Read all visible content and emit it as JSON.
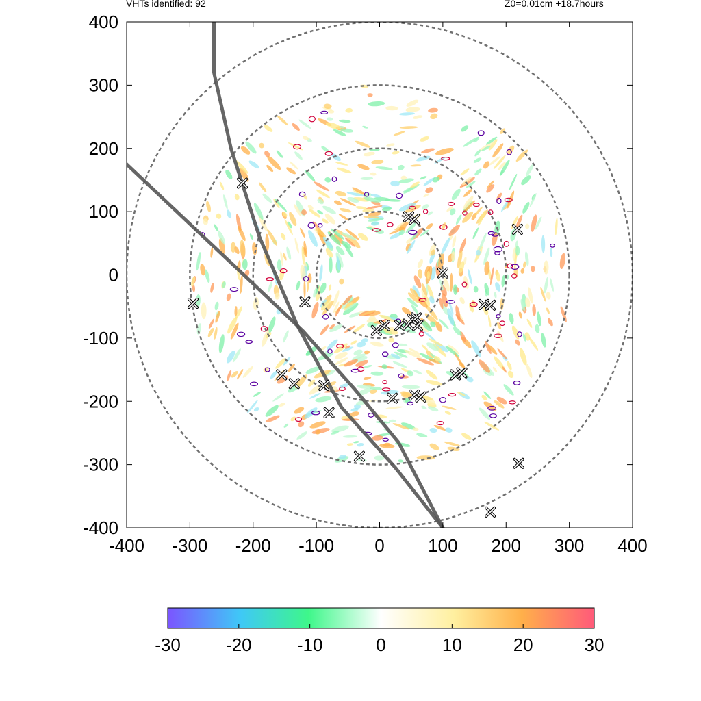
{
  "header": {
    "left_text": "VHTs identified: 92",
    "right_text": "Z0=0.01cm  +18.7hours"
  },
  "chart_data": {
    "type": "scatter",
    "title": "",
    "xlabel": "",
    "ylabel": "",
    "xlim": [
      -400,
      400
    ],
    "ylim": [
      -400,
      400
    ],
    "x_ticks": [
      "-400",
      "-300",
      "-200",
      "-100",
      "0",
      "100",
      "200",
      "300",
      "400"
    ],
    "y_ticks": [
      "400",
      "300",
      "200",
      "100",
      "0",
      "-100",
      "-200",
      "-300",
      "-400"
    ],
    "range_rings_radius": [
      100,
      200,
      300,
      400
    ],
    "vht_count": 92,
    "vht_markers": [
      {
        "x": -295,
        "y": -45
      },
      {
        "x": -217,
        "y": 145
      },
      {
        "x": -118,
        "y": -43
      },
      {
        "x": 46,
        "y": 92
      },
      {
        "x": 55,
        "y": 88
      },
      {
        "x": 218,
        "y": 72
      },
      {
        "x": 100,
        "y": 3
      },
      {
        "x": -5,
        "y": -88
      },
      {
        "x": 8,
        "y": -80
      },
      {
        "x": 32,
        "y": -80
      },
      {
        "x": 45,
        "y": -78
      },
      {
        "x": 52,
        "y": -70
      },
      {
        "x": 58,
        "y": -68
      },
      {
        "x": 60,
        "y": -80
      },
      {
        "x": 165,
        "y": -47
      },
      {
        "x": 175,
        "y": -48
      },
      {
        "x": -155,
        "y": -158
      },
      {
        "x": -135,
        "y": -172
      },
      {
        "x": -88,
        "y": -175
      },
      {
        "x": -80,
        "y": -218
      },
      {
        "x": 20,
        "y": -195
      },
      {
        "x": 55,
        "y": -190
      },
      {
        "x": 65,
        "y": -193
      },
      {
        "x": 120,
        "y": -158
      },
      {
        "x": 130,
        "y": -155
      },
      {
        "x": -32,
        "y": -287
      },
      {
        "x": 220,
        "y": -298
      },
      {
        "x": 175,
        "y": -375
      }
    ],
    "track_lines": [
      {
        "points": [
          [
            -400,
            175
          ],
          [
            -310,
            90
          ],
          [
            -220,
            5
          ],
          [
            -120,
            -90
          ],
          [
            -40,
            -180
          ],
          [
            30,
            -265
          ],
          [
            100,
            -400
          ]
        ]
      },
      {
        "points": [
          [
            -262,
            400
          ],
          [
            -262,
            320
          ],
          [
            -235,
            200
          ],
          [
            -190,
            60
          ],
          [
            -130,
            -80
          ],
          [
            -60,
            -210
          ],
          [
            25,
            -305
          ],
          [
            100,
            -400
          ]
        ]
      }
    ],
    "colorbar": {
      "min": -30,
      "max": 30,
      "ticks": [
        "-30",
        "-20",
        "-10",
        "0",
        "10",
        "20",
        "30"
      ],
      "colors": [
        "#7b55ff",
        "#3fc8f7",
        "#3ef78a",
        "#ffffff",
        "#fff0a0",
        "#ffb04a",
        "#ff5a7a"
      ]
    }
  }
}
